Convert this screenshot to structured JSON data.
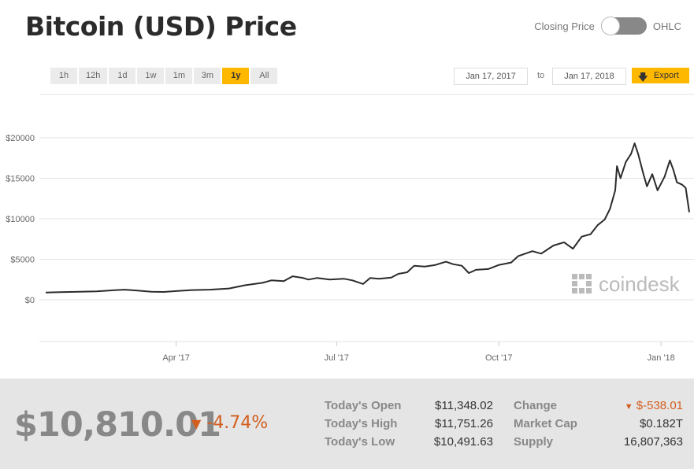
{
  "title": "Bitcoin (USD) Price",
  "toggle": {
    "left_label": "Closing Price",
    "right_label": "OHLC"
  },
  "ranges": [
    "1h",
    "12h",
    "1d",
    "1w",
    "1m",
    "3m",
    "1y",
    "All"
  ],
  "active_range": "1y",
  "date_from": "Jan 17, 2017",
  "date_to_label": "to",
  "date_to": "Jan 17, 2018",
  "export_label": "Export",
  "watermark": "coindesk",
  "colors": {
    "accent": "#ffb800",
    "line": "#2b2b2b",
    "negative": "#d35d1e",
    "panel": "#e5e5e5"
  },
  "chart_data": {
    "type": "line",
    "title": "",
    "xlabel": "",
    "ylabel": "",
    "ylim": [
      0,
      20000
    ],
    "yticks": [
      0,
      5000,
      10000,
      15000,
      20000
    ],
    "ytick_labels": [
      "$0",
      "$5000",
      "$10000",
      "$15000",
      "$20000"
    ],
    "xticks": [
      "2017-04-01",
      "2017-07-01",
      "2017-10-01",
      "2018-01-01"
    ],
    "xtick_labels": [
      "Apr '17",
      "Jul '17",
      "Oct '17",
      "Jan '18"
    ],
    "grid": true,
    "series": [
      {
        "x": [
          "2017-01-17",
          "2017-01-25",
          "2017-02-05",
          "2017-02-15",
          "2017-02-25",
          "2017-03-03",
          "2017-03-10",
          "2017-03-18",
          "2017-03-25",
          "2017-04-01",
          "2017-04-10",
          "2017-04-20",
          "2017-05-01",
          "2017-05-10",
          "2017-05-20",
          "2017-05-25",
          "2017-06-01",
          "2017-06-06",
          "2017-06-12",
          "2017-06-15",
          "2017-06-20",
          "2017-06-27",
          "2017-07-05",
          "2017-07-10",
          "2017-07-16",
          "2017-07-20",
          "2017-07-25",
          "2017-08-01",
          "2017-08-05",
          "2017-08-10",
          "2017-08-14",
          "2017-08-20",
          "2017-08-26",
          "2017-09-01",
          "2017-09-05",
          "2017-09-10",
          "2017-09-14",
          "2017-09-18",
          "2017-09-25",
          "2017-10-01",
          "2017-10-08",
          "2017-10-12",
          "2017-10-20",
          "2017-10-25",
          "2017-11-01",
          "2017-11-07",
          "2017-11-12",
          "2017-11-17",
          "2017-11-22",
          "2017-11-26",
          "2017-11-30",
          "2017-12-03",
          "2017-12-06",
          "2017-12-07",
          "2017-12-09",
          "2017-12-12",
          "2017-12-15",
          "2017-12-17",
          "2017-12-19",
          "2017-12-22",
          "2017-12-24",
          "2017-12-27",
          "2017-12-30",
          "2018-01-03",
          "2018-01-06",
          "2018-01-08",
          "2018-01-10",
          "2018-01-13",
          "2018-01-15",
          "2018-01-17"
        ],
        "y": [
          900,
          950,
          1000,
          1050,
          1180,
          1250,
          1150,
          1000,
          970,
          1080,
          1200,
          1250,
          1400,
          1800,
          2100,
          2400,
          2300,
          2900,
          2700,
          2500,
          2700,
          2500,
          2600,
          2400,
          1950,
          2700,
          2600,
          2750,
          3200,
          3400,
          4200,
          4100,
          4300,
          4700,
          4400,
          4200,
          3300,
          3700,
          3800,
          4300,
          4600,
          5400,
          6000,
          5700,
          6700,
          7100,
          6300,
          7800,
          8100,
          9200,
          9900,
          11200,
          13500,
          16500,
          15000,
          17000,
          18000,
          19300,
          18000,
          15500,
          14000,
          15500,
          13500,
          15200,
          17200,
          16000,
          14500,
          14200,
          13800,
          10810
        ]
      }
    ]
  },
  "summary": {
    "price": "$10,810.01",
    "change_pct": "-4.74%",
    "open_label": "Today's Open",
    "open": "$11,348.02",
    "high_label": "Today's High",
    "high": "$11,751.26",
    "low_label": "Today's Low",
    "low": "$10,491.63",
    "change_label": "Change",
    "change": "$-538.01",
    "mcap_label": "Market Cap",
    "mcap": "$0.182T",
    "supply_label": "Supply",
    "supply": "16,807,363"
  }
}
